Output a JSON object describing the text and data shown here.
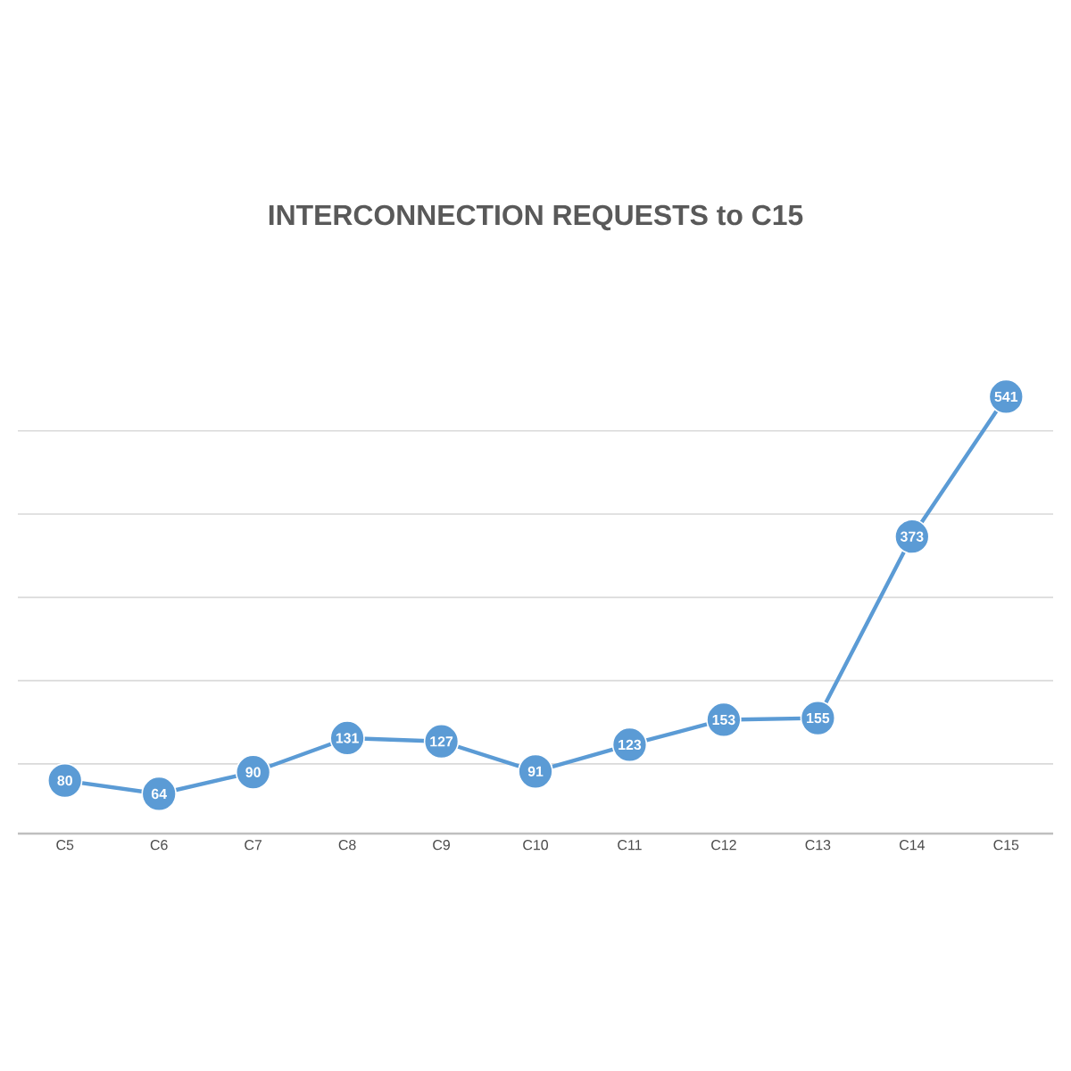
{
  "chart_data": {
    "type": "line",
    "title": "INTERCONNECTION REQUESTS to C15",
    "categories": [
      "C5",
      "C6",
      "C7",
      "C8",
      "C9",
      "C10",
      "C11",
      "C12",
      "C13",
      "C14",
      "C15"
    ],
    "values": [
      80,
      64,
      90,
      131,
      127,
      91,
      123,
      153,
      155,
      373,
      541
    ],
    "color": "#5b9bd5",
    "marker": "circle",
    "line_style": "solid",
    "data_labels": true,
    "grid": "y",
    "tick_labels": "x"
  }
}
